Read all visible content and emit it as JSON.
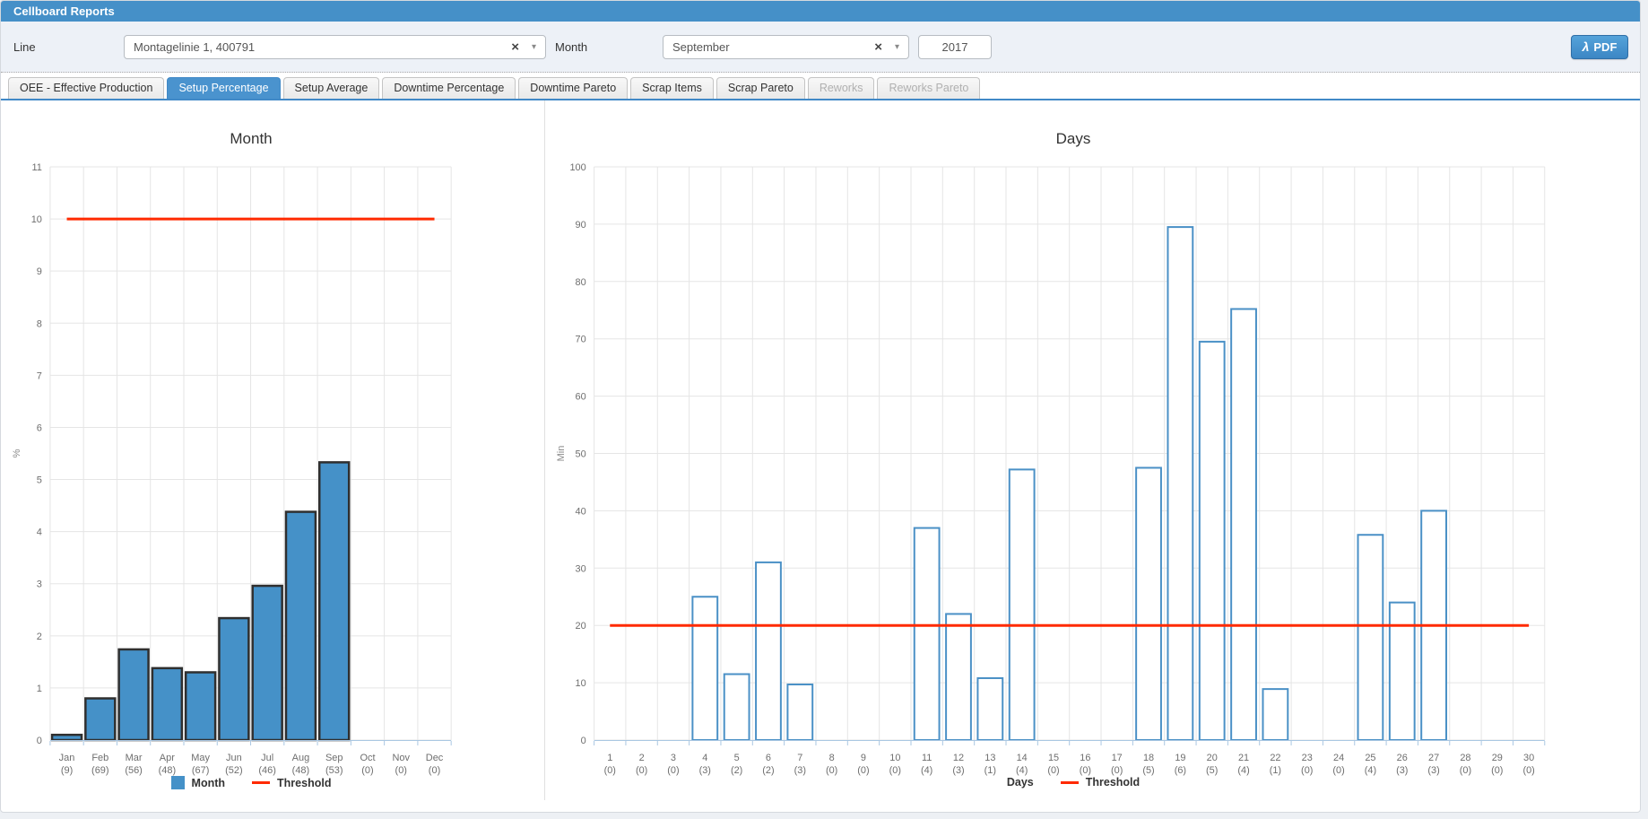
{
  "header": {
    "title": "Cellboard Reports"
  },
  "filters": {
    "line_label": "Line",
    "line_value": "Montagelinie 1, 400791",
    "month_label": "Month",
    "month_value": "September",
    "year_value": "2017",
    "pdf_label": "PDF",
    "clear_glyph": "×",
    "caret_glyph": "▾",
    "pdf_icon_glyph": "λ"
  },
  "tabs": [
    {
      "label": "OEE - Effective Production",
      "state": "normal"
    },
    {
      "label": "Setup Percentage",
      "state": "active"
    },
    {
      "label": "Setup Average",
      "state": "normal"
    },
    {
      "label": "Downtime Percentage",
      "state": "normal"
    },
    {
      "label": "Downtime Pareto",
      "state": "normal"
    },
    {
      "label": "Scrap Items",
      "state": "normal"
    },
    {
      "label": "Scrap Pareto",
      "state": "normal"
    },
    {
      "label": "Reworks",
      "state": "disabled"
    },
    {
      "label": "Reworks Pareto",
      "state": "disabled"
    }
  ],
  "colors": {
    "accent_blue": "#4590c8",
    "bar_fill_month": "#4591c8",
    "bar_stroke_month": "#2f2f2f",
    "bar_fill_days": "#ffffff",
    "bar_stroke_days": "#4a90c6",
    "threshold_red": "#ff2a00",
    "grid": "#e5e5e5",
    "axis_blue": "#aac7e2",
    "tick_text": "#6e6e6e"
  },
  "chart_data": [
    {
      "type": "bar",
      "title": "Month",
      "ylabel": "%",
      "ylim": [
        0,
        11
      ],
      "ytick_step": 1,
      "grid": true,
      "legend": [
        "Month",
        "Threshold"
      ],
      "legend_position": "bottom",
      "categories": [
        "Jan",
        "Feb",
        "Mar",
        "Apr",
        "May",
        "Jun",
        "Jul",
        "Aug",
        "Sep",
        "Oct",
        "Nov",
        "Dec"
      ],
      "counts": [
        9,
        69,
        56,
        48,
        67,
        52,
        46,
        48,
        53,
        0,
        0,
        0
      ],
      "values": [
        0.1,
        0.8,
        1.74,
        1.38,
        1.3,
        2.34,
        2.96,
        4.38,
        5.33,
        0,
        0,
        0
      ],
      "threshold": 10,
      "bar_style": "filled"
    },
    {
      "type": "bar",
      "title": "Days",
      "ylabel": "Min",
      "ylim": [
        0,
        100
      ],
      "ytick_step": 10,
      "grid": true,
      "legend": [
        "Days",
        "Threshold"
      ],
      "legend_position": "bottom",
      "categories": [
        "1",
        "2",
        "3",
        "4",
        "5",
        "6",
        "7",
        "8",
        "9",
        "10",
        "11",
        "12",
        "13",
        "14",
        "15",
        "16",
        "17",
        "18",
        "19",
        "20",
        "21",
        "22",
        "23",
        "24",
        "25",
        "26",
        "27",
        "28",
        "29",
        "30"
      ],
      "counts": [
        0,
        0,
        0,
        3,
        2,
        2,
        3,
        0,
        0,
        0,
        4,
        3,
        1,
        4,
        0,
        0,
        0,
        5,
        6,
        5,
        4,
        1,
        0,
        0,
        4,
        3,
        3,
        0,
        0,
        0
      ],
      "values": [
        0,
        0,
        0,
        25,
        11.5,
        31,
        9.7,
        0,
        0,
        0,
        37,
        22,
        10.8,
        47.2,
        0,
        0,
        0,
        47.5,
        89.5,
        69.5,
        75.2,
        8.9,
        0,
        0,
        35.8,
        24,
        40,
        0,
        0,
        0
      ],
      "threshold": 20,
      "bar_style": "outline"
    }
  ]
}
